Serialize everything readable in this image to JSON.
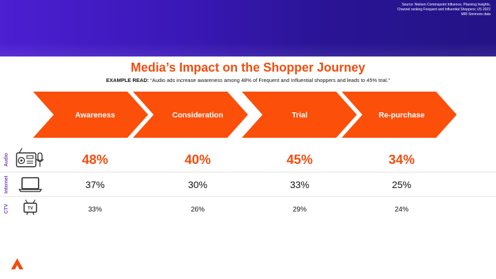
{
  "source_note": {
    "line1": "Source: Nielsen Commspoint Influence, Planning Insights,",
    "line2": "Channel ranking Frequent and Influential Shoppers; US 2022",
    "line3": "MRI Simmons data"
  },
  "title": "Media’s Impact on the Shopper Journey",
  "example_read": {
    "label": "EXAMPLE READ:",
    "text": "“Audio ads increase awareness among 48% of Frequent and Influential shoppers and leads to 45% trial.”"
  },
  "colors": {
    "accent": "#ef4e10",
    "chevron": "#fb4f0a",
    "row_label": "#7b3fc5",
    "banner": "#3b18b8"
  },
  "chart_data": {
    "type": "table",
    "categories": [
      "Awareness",
      "Consideration",
      "Trial",
      "Re-purchase"
    ],
    "series": [
      {
        "name": "Audio",
        "icon": "radio-microphone-icon",
        "values": [
          48,
          40,
          45,
          34
        ],
        "labels": [
          "48%",
          "40%",
          "45%",
          "34%"
        ]
      },
      {
        "name": "Internet",
        "icon": "laptop-icon",
        "values": [
          37,
          30,
          33,
          25
        ],
        "labels": [
          "37%",
          "30%",
          "33%",
          "25%"
        ]
      },
      {
        "name": "CTV",
        "icon": "tv-icon",
        "values": [
          33,
          26,
          29,
          24
        ],
        "labels": [
          "33%",
          "26%",
          "29%",
          "24%"
        ]
      }
    ],
    "unit": "%"
  }
}
